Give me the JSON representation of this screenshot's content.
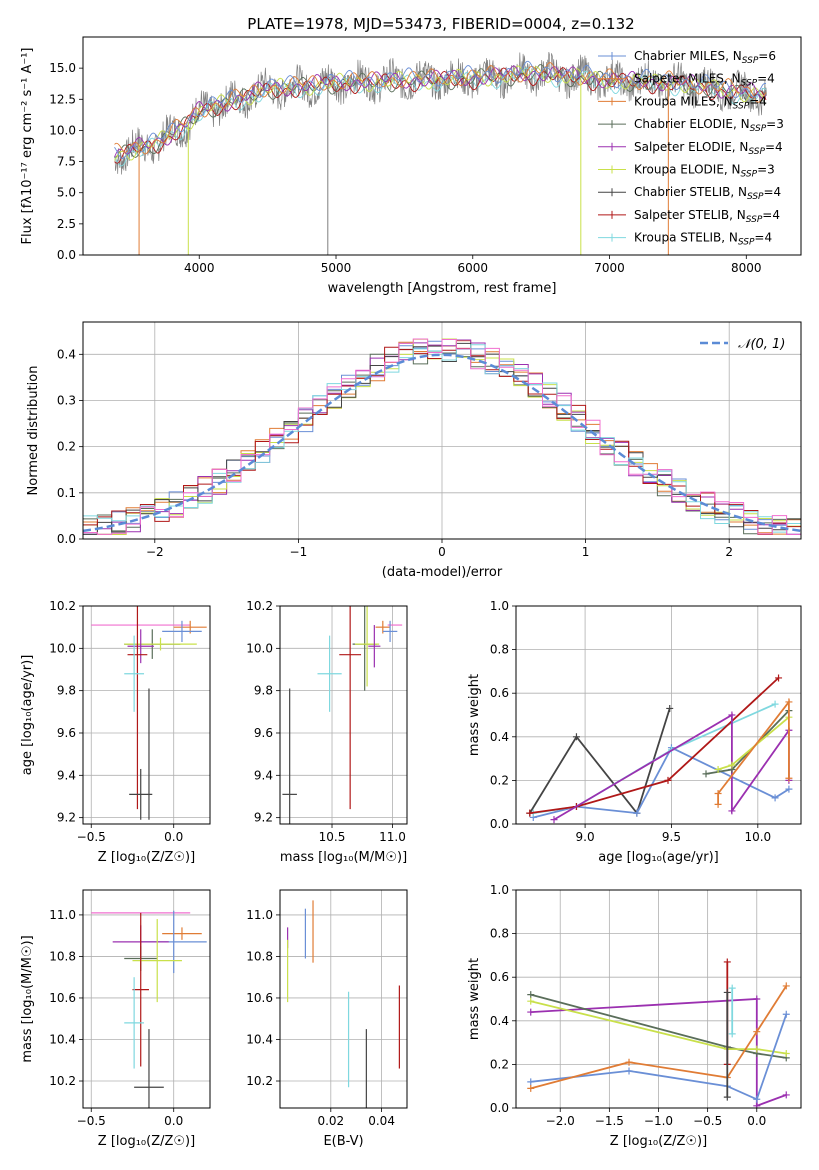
{
  "figure": {
    "title": "PLATE=1978, MJD=53473, FIBERID=0004, z=0.132",
    "colors": {
      "Chabrier MILES": "#6a8fd6",
      "Salpeter MILES": "#e07c35",
      "Kroupa MILES": "#e07c35",
      "Chabrier ELODIE": "#5a6e5a",
      "Salpeter ELODIE": "#9b30b0",
      "Kroupa ELODIE": "#c9e04a",
      "Chabrier STELIB": "#444444",
      "Salpeter STELIB": "#b01818",
      "Kroupa STELIB": "#7fd8df",
      "data": "#808080",
      "pink": "#f06fcf",
      "gaussian": "#5b8bd6"
    }
  },
  "chart_data": [
    {
      "id": "spectrum",
      "type": "line",
      "xlabel": "wavelength [Angstrom, rest frame]",
      "ylabel": "Flux [f$_\\lambda$10$^{-17}$ erg cm$^{-2}$ s$^{-1}$ A$^{-1}$]",
      "ylabel_display": "Flux [fλ10⁻¹⁷ erg cm⁻² s⁻¹ A⁻¹]",
      "xlim": [
        3150,
        8400
      ],
      "ylim": [
        0,
        17.5
      ],
      "xticks": [
        4000,
        5000,
        6000,
        7000,
        8000
      ],
      "yticks": [
        0.0,
        2.5,
        5.0,
        7.5,
        10.0,
        12.5,
        15.0
      ],
      "legend": [
        "Chabrier MILES, N$_{SSP}$=6",
        "Salpeter MILES, N$_{SSP}$=4",
        "Kroupa MILES, N$_{SSP}$=4",
        "Chabrier ELODIE, N$_{SSP}$=3",
        "Salpeter ELODIE, N$_{SSP}$=4",
        "Kroupa ELODIE, N$_{SSP}$=3",
        "Chabrier STELIB, N$_{SSP}$=4",
        "Salpeter STELIB, N$_{SSP}$=4",
        "Kroupa STELIB, N$_{SSP}$=4"
      ],
      "legend_display": [
        "Chabrier MILES, N",
        "Salpeter MILES, N",
        "Kroupa MILES, N",
        "Chabrier ELODIE, N",
        "Salpeter ELODIE, N",
        "Kroupa ELODIE, N",
        "Chabrier STELIB, N",
        "Salpeter STELIB, N",
        "Kroupa STELIB, N"
      ],
      "legend_nssp": [
        "6",
        "4",
        "4",
        "3",
        "4",
        "3",
        "4",
        "4",
        "4"
      ],
      "legend_placement": "upper right",
      "continuum_anchors": [
        [
          3380,
          8.0
        ],
        [
          3700,
          9.0
        ],
        [
          3900,
          10.5
        ],
        [
          4000,
          11.5
        ],
        [
          4500,
          13.3
        ],
        [
          5000,
          13.8
        ],
        [
          5500,
          14.0
        ],
        [
          6000,
          14.2
        ],
        [
          6500,
          14.6
        ],
        [
          7000,
          14.0
        ],
        [
          7500,
          13.8
        ],
        [
          8000,
          13.0
        ],
        [
          8150,
          12.8
        ]
      ],
      "spikes": [
        {
          "x": 3560,
          "y": 0,
          "series": "Salpeter MILES"
        },
        {
          "x": 3920,
          "y": 0,
          "series": "Kroupa ELODIE"
        },
        {
          "x": 4940,
          "y": 0,
          "series": "data"
        },
        {
          "x": 6790,
          "y": 0,
          "series": "Kroupa ELODIE"
        },
        {
          "x": 7430,
          "y": 0,
          "series": "Salpeter MILES"
        }
      ]
    },
    {
      "id": "residual-histogram",
      "type": "bar",
      "xlabel": "(data-model)/error",
      "ylabel": "Normed distribution",
      "xlim": [
        -2.5,
        2.5
      ],
      "ylim": [
        0.0,
        0.47
      ],
      "xticks": [
        -2,
        -1,
        0,
        1,
        2
      ],
      "yticks": [
        0.0,
        0.1,
        0.2,
        0.3,
        0.4
      ],
      "legend": [
        "$\\mathcal{N}(0,1)$"
      ],
      "legend_display": [
        "𝒩(0, 1)"
      ],
      "legend_placement": "upper right",
      "bin_width": 0.1,
      "envelope": "gaussian N(0,1) with per-series scatter of about 0.03",
      "gaussian": {
        "mean": 0,
        "sigma": 1
      }
    },
    {
      "id": "age-vs-metallicity",
      "type": "scatter",
      "xlabel": "Z [log$_{10}$(Z/Z$_\\odot$)]",
      "xlabel_display": "Z [log₁₀(Z/Z☉)]",
      "ylabel": "age  [log$_{10}$(age/yr)]",
      "ylabel_display": "age  [log₁₀(age/yr)]",
      "xlim": [
        -0.55,
        0.22
      ],
      "ylim": [
        9.17,
        10.2
      ],
      "xticks": [
        -0.5,
        0.0
      ],
      "yticks": [
        9.2,
        9.4,
        9.6,
        9.8,
        10.0,
        10.2
      ],
      "crosses": [
        {
          "series": "pink",
          "x": -0.2,
          "xerr": 0.3,
          "y": 10.11,
          "yerr": 0.0
        },
        {
          "series": "Salpeter MILES",
          "x": 0.1,
          "xerr": 0.1,
          "y": 10.1,
          "yerr": 0.03
        },
        {
          "series": "Chabrier MILES",
          "x": 0.05,
          "xerr": 0.12,
          "y": 10.08,
          "yerr": 0.05
        },
        {
          "series": "Chabrier ELODIE",
          "x": -0.13,
          "xerr": 0.17,
          "y": 10.02,
          "yerr": 0.07
        },
        {
          "series": "Kroupa ELODIE",
          "x": -0.08,
          "xerr": 0.22,
          "y": 10.02,
          "yerr": 0.03
        },
        {
          "series": "Salpeter ELODIE",
          "x": -0.2,
          "xerr": 0.08,
          "y": 10.01,
          "yerr": 0.08
        },
        {
          "series": "Salpeter STELIB",
          "x": -0.22,
          "xerr": 0.06,
          "y": 9.97,
          "yerr": 0.73
        },
        {
          "series": "Kroupa STELIB",
          "x": -0.24,
          "xerr": 0.06,
          "y": 9.88,
          "yerr": 0.18
        },
        {
          "series": "Chabrier STELIB",
          "x": -0.2,
          "xerr": 0.07,
          "y": 9.31,
          "yerr": 0.12
        },
        {
          "series": "Chabrier STELIB",
          "x": -0.15,
          "xerr": 0.0,
          "y": 9.5,
          "yerr": 0.31
        }
      ]
    },
    {
      "id": "age-vs-mass",
      "type": "scatter",
      "xlabel": "mass [log$_{10}$(M/M$_\\odot$)]",
      "xlabel_display": "mass [log₁₀(M/M☉)]",
      "xlim": [
        10.07,
        11.12
      ],
      "ylim": [
        9.17,
        10.2
      ],
      "xticks": [
        10.5,
        11.0
      ],
      "yticks": [
        9.2,
        9.4,
        9.6,
        9.8,
        10.0,
        10.2
      ],
      "crosses": [
        {
          "series": "pink",
          "x": 11.02,
          "xerr": 0.06,
          "y": 10.11,
          "yerr": 0.0
        },
        {
          "series": "Salpeter MILES",
          "x": 10.92,
          "xerr": 0.06,
          "y": 10.1,
          "yerr": 0.03
        },
        {
          "series": "Chabrier MILES",
          "x": 10.98,
          "xerr": 0.06,
          "y": 10.08,
          "yerr": 0.05
        },
        {
          "series": "Chabrier ELODIE",
          "x": 10.77,
          "xerr": 0.1,
          "y": 10.02,
          "yerr": 0.22
        },
        {
          "series": "Kroupa ELODIE",
          "x": 10.79,
          "xerr": 0.1,
          "y": 10.02,
          "yerr": 0.2
        },
        {
          "series": "Salpeter ELODIE",
          "x": 10.85,
          "xerr": 0.05,
          "y": 10.01,
          "yerr": 0.1
        },
        {
          "series": "Salpeter STELIB",
          "x": 10.65,
          "xerr": 0.09,
          "y": 9.97,
          "yerr": 0.73
        },
        {
          "series": "Kroupa STELIB",
          "x": 10.48,
          "xerr": 0.1,
          "y": 9.88,
          "yerr": 0.18
        },
        {
          "series": "Chabrier STELIB",
          "x": 10.15,
          "xerr": 0.06,
          "y": 9.31,
          "yerr": 0.5
        }
      ]
    },
    {
      "id": "mass-weight-vs-age",
      "type": "line",
      "xlabel": "age  [log$_{10}$(age/yr)]",
      "xlabel_display": "age  [log₁₀(age/yr)]",
      "ylabel": "mass weight",
      "xlim": [
        8.6,
        10.25
      ],
      "ylim": [
        0.0,
        1.0
      ],
      "xticks": [
        9.0,
        9.5,
        10.0
      ],
      "yticks": [
        0.0,
        0.2,
        0.4,
        0.6,
        0.8,
        1.0
      ],
      "series": [
        {
          "series": "Chabrier STELIB",
          "x": [
            8.68,
            8.95,
            9.3,
            9.49
          ],
          "y": [
            0.05,
            0.4,
            0.05,
            0.53
          ]
        },
        {
          "series": "Chabrier MILES",
          "x": [
            8.7,
            8.95,
            9.3,
            9.5,
            10.1,
            10.18
          ],
          "y": [
            0.03,
            0.08,
            0.05,
            0.35,
            0.12,
            0.16
          ]
        },
        {
          "series": "Kroupa STELIB",
          "x": [
            8.7,
            8.95,
            9.5,
            10.1
          ],
          "y": [
            0.05,
            0.08,
            0.34,
            0.55
          ]
        },
        {
          "series": "Salpeter STELIB",
          "x": [
            8.68,
            8.95,
            9.48,
            10.12
          ],
          "y": [
            0.05,
            0.08,
            0.2,
            0.67
          ]
        },
        {
          "series": "Salpeter ELODIE",
          "x": [
            8.82,
            9.85,
            9.85,
            10.18,
            10.18
          ],
          "y": [
            0.02,
            0.5,
            0.06,
            0.43,
            0.2
          ]
        },
        {
          "series": "Chabrier ELODIE",
          "x": [
            9.7,
            9.85,
            10.18
          ],
          "y": [
            0.23,
            0.25,
            0.52
          ]
        },
        {
          "series": "Kroupa ELODIE",
          "x": [
            9.77,
            9.85,
            10.18
          ],
          "y": [
            0.25,
            0.27,
            0.49
          ]
        },
        {
          "series": "Salpeter MILES",
          "x": [
            9.77,
            9.77,
            10.18,
            10.18
          ],
          "y": [
            0.09,
            0.14,
            0.56,
            0.21
          ]
        }
      ]
    },
    {
      "id": "mass-vs-metallicity",
      "type": "scatter",
      "xlabel": "Z [log$_{10}$(Z/Z$_\\odot$)]",
      "xlabel_display": "Z [log₁₀(Z/Z☉)]",
      "ylabel": "mass [log$_{10}$(M/M$_\\odot$)]",
      "ylabel_display": "mass [log₁₀(M/M☉)]",
      "xlim": [
        -0.55,
        0.22
      ],
      "ylim": [
        10.07,
        11.12
      ],
      "xticks": [
        -0.5,
        0.0
      ],
      "yticks": [
        10.2,
        10.4,
        10.6,
        10.8,
        11.0
      ],
      "crosses": [
        {
          "series": "pink",
          "x": -0.2,
          "xerr": 0.3,
          "y": 11.01,
          "yerr": 0.0
        },
        {
          "series": "Salpeter MILES",
          "x": 0.05,
          "xerr": 0.12,
          "y": 10.91,
          "yerr": 0.03
        },
        {
          "series": "Chabrier MILES",
          "x": 0.0,
          "xerr": 0.2,
          "y": 10.87,
          "yerr": 0.15
        },
        {
          "series": "Salpeter ELODIE",
          "x": -0.2,
          "xerr": 0.17,
          "y": 10.87,
          "yerr": 0.08
        },
        {
          "series": "Chabrier ELODIE",
          "x": -0.2,
          "xerr": 0.1,
          "y": 10.79,
          "yerr": 0.06
        },
        {
          "series": "Kroupa ELODIE",
          "x": -0.1,
          "xerr": 0.15,
          "y": 10.78,
          "yerr": 0.2
        },
        {
          "series": "Salpeter STELIB",
          "x": -0.2,
          "xerr": 0.05,
          "y": 10.64,
          "yerr": 0.37
        },
        {
          "series": "Kroupa STELIB",
          "x": -0.24,
          "xerr": 0.06,
          "y": 10.48,
          "yerr": 0.22
        },
        {
          "series": "Chabrier STELIB",
          "x": -0.15,
          "xerr": 0.09,
          "y": 10.17,
          "yerr": 0.28
        }
      ]
    },
    {
      "id": "mass-vs-extinction",
      "type": "scatter",
      "xlabel": "E(B-V)",
      "xlim": [
        0.0,
        0.05
      ],
      "ylim": [
        10.07,
        11.12
      ],
      "xticks": [
        0.02,
        0.04
      ],
      "yticks": [
        10.2,
        10.4,
        10.6,
        10.8,
        11.0
      ],
      "crosses": [
        {
          "series": "Salpeter ELODIE",
          "x": 0.003,
          "xerr": 0.0,
          "y": 10.89,
          "yerr": 0.05
        },
        {
          "series": "Kroupa ELODIE",
          "x": 0.003,
          "xerr": 0.0,
          "y": 10.73,
          "yerr": 0.15
        },
        {
          "series": "Chabrier MILES",
          "x": 0.01,
          "xerr": 0.0,
          "y": 10.91,
          "yerr": 0.12
        },
        {
          "series": "Salpeter MILES",
          "x": 0.013,
          "xerr": 0.0,
          "y": 10.92,
          "yerr": 0.15
        },
        {
          "series": "Kroupa STELIB",
          "x": 0.027,
          "xerr": 0.0,
          "y": 10.4,
          "yerr": 0.23
        },
        {
          "series": "Chabrier STELIB",
          "x": 0.034,
          "xerr": 0.0,
          "y": 10.2,
          "yerr": 0.25
        },
        {
          "series": "Salpeter STELIB",
          "x": 0.047,
          "xerr": 0.0,
          "y": 10.46,
          "yerr": 0.2
        }
      ]
    },
    {
      "id": "mass-weight-vs-metallicity",
      "type": "line",
      "xlabel": "Z [log$_{10}$(Z/Z$_\\odot$)]",
      "xlabel_display": "Z [log₁₀(Z/Z☉)]",
      "ylabel": "mass weight",
      "xlim": [
        -2.45,
        0.45
      ],
      "ylim": [
        0.0,
        1.0
      ],
      "xticks": [
        -2.0,
        -1.5,
        -1.0,
        -0.5,
        0.0
      ],
      "yticks": [
        0.0,
        0.2,
        0.4,
        0.6,
        0.8,
        1.0
      ],
      "series": [
        {
          "series": "Salpeter ELODIE",
          "x": [
            -2.3,
            0.0,
            0.0,
            0.3
          ],
          "y": [
            0.44,
            0.5,
            0.01,
            0.06
          ]
        },
        {
          "series": "Chabrier ELODIE",
          "x": [
            -2.3,
            -0.3,
            0.0,
            0.3
          ],
          "y": [
            0.52,
            0.28,
            0.25,
            0.23
          ]
        },
        {
          "series": "Kroupa ELODIE",
          "x": [
            -2.3,
            -0.3,
            0.0,
            0.3
          ],
          "y": [
            0.49,
            0.27,
            0.27,
            0.25
          ]
        },
        {
          "series": "Chabrier MILES",
          "x": [
            -2.3,
            -1.3,
            -0.3,
            0.0,
            0.3
          ],
          "y": [
            0.12,
            0.17,
            0.1,
            0.04,
            0.43
          ]
        },
        {
          "series": "Salpeter MILES",
          "x": [
            -2.3,
            -1.3,
            -0.3,
            0.0,
            0.3
          ],
          "y": [
            0.09,
            0.21,
            0.14,
            0.35,
            0.56
          ]
        },
        {
          "series": "Salpeter STELIB",
          "x": [
            -0.3,
            -0.3
          ],
          "y": [
            0.67,
            0.2
          ]
        },
        {
          "series": "Chabrier STELIB",
          "x": [
            -0.3,
            -0.3
          ],
          "y": [
            0.53,
            0.05
          ]
        },
        {
          "series": "Kroupa STELIB",
          "x": [
            -0.25,
            -0.25
          ],
          "y": [
            0.55,
            0.34
          ]
        }
      ]
    }
  ]
}
